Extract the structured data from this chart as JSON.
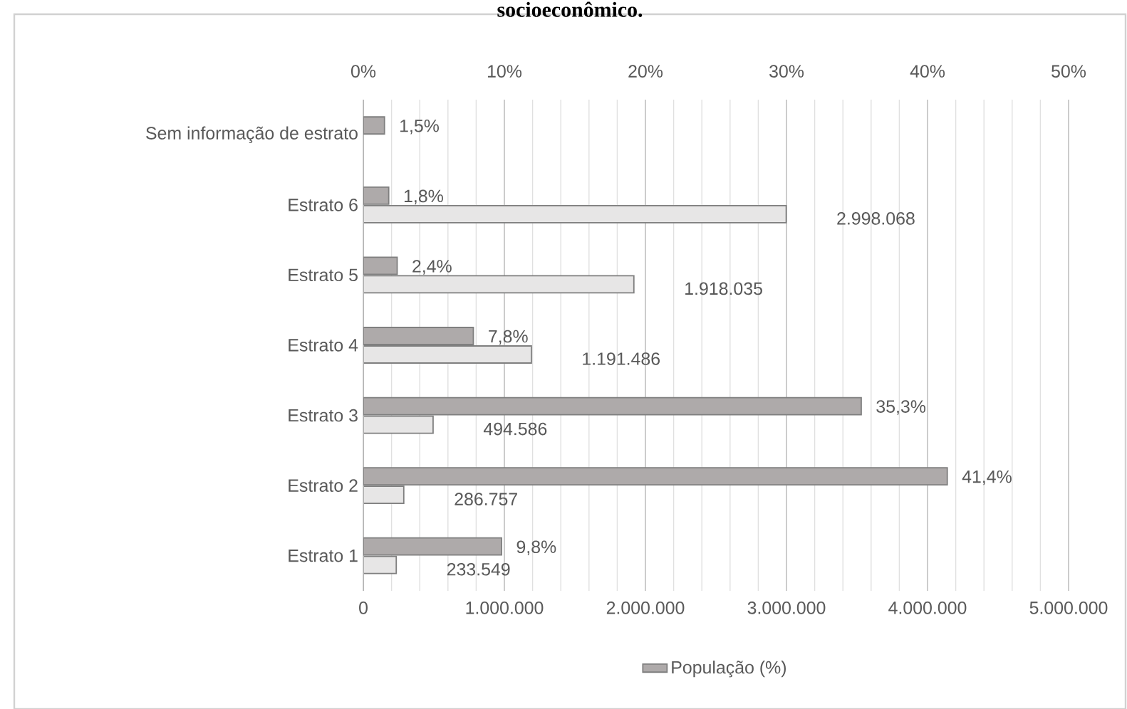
{
  "chart_data": {
    "type": "bar",
    "orientation": "horizontal",
    "title": "socioeconômico.",
    "categories": [
      "Sem informação de estrato",
      "Estrato 6",
      "Estrato 5",
      "Estrato 4",
      "Estrato 3",
      "Estrato 2",
      "Estrato 1"
    ],
    "series": [
      {
        "name": "População (%)",
        "color": "#aeaaaa",
        "axis": "x2",
        "values": [
          1.5,
          1.8,
          2.4,
          7.8,
          35.3,
          41.4,
          9.8
        ],
        "value_labels": [
          "1,5%",
          "1,8%",
          "2,4%",
          "7,8%",
          "35,3%",
          "41,4%",
          "9,8%"
        ]
      },
      {
        "color": "#e7e6e6",
        "values": [
          null,
          2998068,
          1918035,
          1191486,
          494586,
          286757,
          233549
        ],
        "value_labels": [
          null,
          "2.998.068",
          "1.918.035",
          "1.191.486",
          "494.586",
          "286.757",
          "233.549"
        ]
      }
    ],
    "xlim": [
      0,
      5000000
    ],
    "xticks": [
      0,
      {
        "value": 1000000,
        "label": "1.000.000"
      },
      {
        "value": 2000000,
        "label": "2.000.000"
      },
      {
        "value": 3000000,
        "label": "3.000.000"
      },
      {
        "value": 4000000,
        "label": "4.000.000"
      },
      {
        "value": 5000000,
        "label": "5.000.000"
      }
    ],
    "x2lim": [
      0,
      50
    ],
    "x2ticks": [
      {
        "value": 0,
        "label": "0%"
      },
      {
        "value": 10,
        "label": "10%"
      },
      {
        "value": 20,
        "label": "20%"
      },
      {
        "value": 30,
        "label": "30%"
      },
      {
        "value": 40,
        "label": "40%"
      },
      {
        "value": 50,
        "label": "50%"
      }
    ],
    "grid": "x",
    "legend": "bottom"
  }
}
